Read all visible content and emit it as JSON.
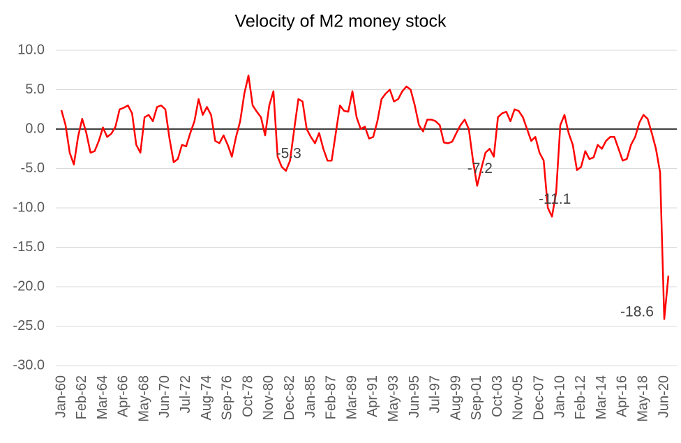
{
  "chart_data": {
    "type": "line",
    "title": "Velocity of M2 money stock",
    "categories": [
      "Jan-60",
      null,
      null,
      null,
      null,
      "Feb-62",
      null,
      null,
      null,
      null,
      "Mar-64",
      null,
      null,
      null,
      null,
      "Apr-66",
      null,
      null,
      null,
      null,
      "May-68",
      null,
      null,
      null,
      null,
      "Jun-70",
      null,
      null,
      null,
      null,
      "Jul-72",
      null,
      null,
      null,
      null,
      "Aug-74",
      null,
      null,
      null,
      null,
      "Sep-76",
      null,
      null,
      null,
      null,
      "Oct-78",
      null,
      null,
      null,
      null,
      "Nov-80",
      null,
      null,
      null,
      null,
      "Dec-82",
      null,
      null,
      null,
      null,
      "Jan-85",
      null,
      null,
      null,
      null,
      "Feb-87",
      null,
      null,
      null,
      null,
      "Mar-89",
      null,
      null,
      null,
      null,
      "Apr-91",
      null,
      null,
      null,
      null,
      "May-93",
      null,
      null,
      null,
      null,
      "Jun-95",
      null,
      null,
      null,
      null,
      "Jul-97",
      null,
      null,
      null,
      null,
      "Aug-99",
      null,
      null,
      null,
      null,
      "Sep-01",
      null,
      null,
      null,
      null,
      "Oct-03",
      null,
      null,
      null,
      null,
      "Nov-05",
      null,
      null,
      null,
      null,
      "Dec-07",
      null,
      null,
      null,
      null,
      "Jan-10",
      null,
      null,
      null,
      null,
      "Feb-12",
      null,
      null,
      null,
      null,
      "Mar-14",
      null,
      null,
      null,
      null,
      "Apr-16",
      null,
      null,
      null,
      null,
      "May-18",
      null,
      null,
      null,
      null,
      "Jun-20",
      null
    ],
    "values": [
      2.4,
      0.5,
      -3.0,
      -4.5,
      -1.0,
      1.3,
      -0.5,
      -3.0,
      -2.8,
      -1.5,
      0.2,
      -1.0,
      -0.6,
      0.3,
      2.5,
      2.7,
      3.0,
      2.0,
      -2.0,
      -3.0,
      1.5,
      1.8,
      1.0,
      2.8,
      3.0,
      2.5,
      -1.2,
      -4.2,
      -3.8,
      -2.0,
      -2.2,
      -0.5,
      1.0,
      3.8,
      1.8,
      2.8,
      1.8,
      -1.5,
      -1.8,
      -0.8,
      -2.0,
      -3.5,
      -1.0,
      1.0,
      4.5,
      6.8,
      3.0,
      2.2,
      1.5,
      -0.8,
      3.0,
      4.8,
      -3.5,
      -4.8,
      -5.3,
      -4.0,
      0.0,
      3.8,
      3.5,
      0.0,
      -1.0,
      -1.8,
      -0.5,
      -2.5,
      -4.0,
      -4.0,
      -0.5,
      3.0,
      2.3,
      2.2,
      4.8,
      1.5,
      0.0,
      0.3,
      -1.2,
      -1.0,
      1.0,
      3.8,
      4.5,
      5.0,
      3.5,
      3.8,
      4.8,
      5.4,
      5.0,
      3.0,
      0.5,
      -0.3,
      1.2,
      1.2,
      1.0,
      0.5,
      -1.7,
      -1.8,
      -1.6,
      -0.5,
      0.5,
      1.2,
      0.0,
      -4.0,
      -7.2,
      -5.0,
      -3.0,
      -2.5,
      -3.5,
      1.5,
      2.0,
      2.2,
      1.0,
      2.5,
      2.3,
      1.5,
      0.0,
      -1.5,
      -1.0,
      -3.0,
      -4.0,
      -10.0,
      -11.1,
      -8.0,
      0.5,
      1.8,
      -0.5,
      -2.0,
      -5.2,
      -4.8,
      -2.8,
      -3.8,
      -3.6,
      -2.0,
      -2.5,
      -1.5,
      -1.0,
      -1.0,
      -2.5,
      -4.0,
      -3.8,
      -2.0,
      -1.0,
      0.8,
      1.8,
      1.3,
      -0.5,
      -2.5,
      -5.5,
      -24.1,
      -18.6
    ],
    "color": "#ff0000",
    "annotations": [
      -5.3,
      -7.2,
      -11.1,
      -18.6
    ],
    "ylim": [
      -30,
      10
    ],
    "yticks": [
      {
        "value": -30,
        "label": "-30.0"
      },
      {
        "value": -25,
        "label": "-25.0"
      },
      {
        "value": -20,
        "label": "-20.0"
      },
      {
        "value": -15,
        "label": "-15.0"
      },
      {
        "value": -10,
        "label": "-10.0"
      },
      {
        "value": -5,
        "label": "-5.0"
      },
      {
        "value": 0,
        "label": "0.0"
      },
      {
        "value": 5,
        "label": "5.0"
      },
      {
        "value": 10,
        "label": "10.0"
      }
    ],
    "grid": true
  }
}
